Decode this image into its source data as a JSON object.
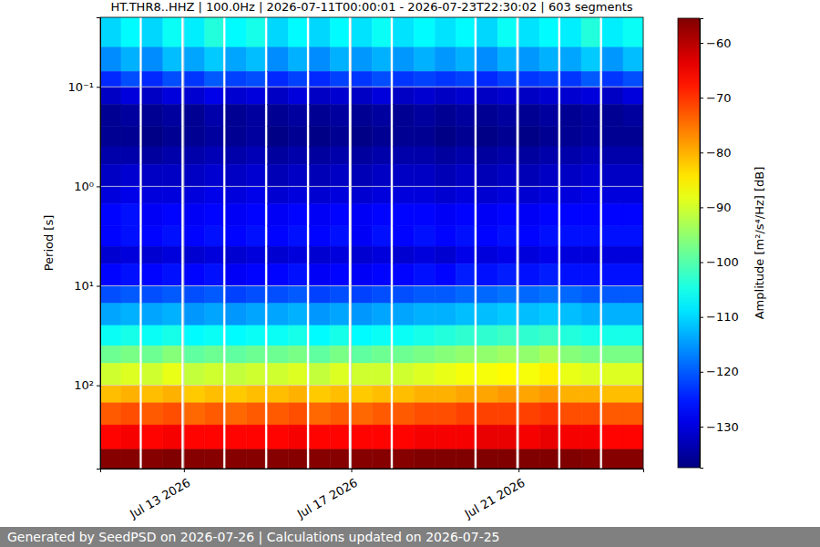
{
  "chart_data": {
    "type": "heatmap",
    "title": "HT.THR8..HHZ | 100.0Hz | 2026-07-11T00:00:01 - 2026-07-23T22:30:02 | 603 segments",
    "y_label": "Period [s]",
    "footer": "Generated by SeedPSD on 2026-07-26 | Calculations updated on 2026-07-25",
    "log": "y",
    "grid": true,
    "xlim": [
      "2026-07-11T00:00",
      "2026-07-23T23:30"
    ],
    "xticks": [
      {
        "value": "2026-07-13T00:00",
        "label": "Jul 13 2026"
      },
      {
        "value": "2026-07-17T00:00",
        "label": "Jul 17 2026"
      },
      {
        "value": "2026-07-21T00:00",
        "label": "Jul 21 2026"
      }
    ],
    "ylim": [
      0.02,
      687
    ],
    "yticks": [
      {
        "value": 0.1,
        "label": "10⁻¹"
      },
      {
        "value": 1,
        "label": "10⁰"
      },
      {
        "value": 10,
        "label": "10¹"
      },
      {
        "value": 100,
        "label": "10²"
      }
    ],
    "x": [
      "2026-07-11T00:00",
      "2026-07-11T12:00",
      "2026-07-11T22:30",
      "2026-07-12T00:00",
      "2026-07-12T12:00",
      "2026-07-12T22:30",
      "2026-07-13T00:00",
      "2026-07-13T12:00",
      "2026-07-13T22:30",
      "2026-07-14T00:00",
      "2026-07-14T12:00",
      "2026-07-14T22:30",
      "2026-07-15T00:00",
      "2026-07-15T12:00",
      "2026-07-15T22:30",
      "2026-07-16T00:00",
      "2026-07-16T12:00",
      "2026-07-16T22:30",
      "2026-07-17T00:00",
      "2026-07-17T12:00",
      "2026-07-17T22:30",
      "2026-07-18T00:00",
      "2026-07-18T12:00",
      "2026-07-19T00:00",
      "2026-07-19T12:00",
      "2026-07-19T22:30",
      "2026-07-20T00:00",
      "2026-07-20T12:00",
      "2026-07-20T22:30",
      "2026-07-21T00:00",
      "2026-07-21T12:00",
      "2026-07-21T22:30",
      "2026-07-22T00:00",
      "2026-07-22T12:00",
      "2026-07-22T22:30",
      "2026-07-23T00:00",
      "2026-07-23T12:00",
      "2026-07-23T23:30"
    ],
    "y": [
      0.02,
      0.04,
      0.07,
      0.1,
      0.15,
      0.25,
      0.4,
      0.6,
      1,
      1.5,
      2.5,
      4,
      6,
      10,
      15,
      25,
      40,
      60,
      100,
      150,
      250,
      440,
      687
    ],
    "cells": [
      [
        -110,
        -116,
        -124,
        -132,
        -136,
        -136,
        -134,
        -132,
        -130,
        -127,
        -127,
        -131,
        -127,
        -121,
        -114,
        -106,
        -98,
        -90,
        -81,
        -73,
        -66,
        -56
      ],
      [
        -107,
        -113,
        -121,
        -130,
        -135,
        -136,
        -134,
        -131,
        -129,
        -126,
        -126,
        -130,
        -126,
        -120,
        -113,
        -105,
        -97,
        -89,
        -80,
        -72,
        -65,
        -56
      ],
      null,
      [
        -110,
        -116,
        -124,
        -132,
        -136,
        -137,
        -135,
        -132,
        -130,
        -128,
        -127,
        -131,
        -127,
        -121,
        -114,
        -106,
        -98,
        -90,
        -81,
        -73,
        -66,
        -56
      ],
      [
        -106,
        -112,
        -121,
        -130,
        -135,
        -136,
        -134,
        -132,
        -130,
        -127,
        -126,
        -130,
        -126,
        -120,
        -113,
        -105,
        -96,
        -88,
        -80,
        -72,
        -65,
        -55
      ],
      null,
      [
        -108,
        -114,
        -123,
        -131,
        -136,
        -136,
        -134,
        -132,
        -130,
        -128,
        -127,
        -131,
        -127,
        -121,
        -115,
        -107,
        -99,
        -91,
        -82,
        -74,
        -66,
        -56
      ],
      [
        -104,
        -111,
        -120,
        -129,
        -134,
        -135,
        -133,
        -131,
        -129,
        -127,
        -126,
        -130,
        -126,
        -120,
        -114,
        -106,
        -98,
        -90,
        -81,
        -73,
        -66,
        -56
      ],
      null,
      [
        -107,
        -114,
        -122,
        -131,
        -136,
        -136,
        -134,
        -132,
        -130,
        -128,
        -127,
        -131,
        -128,
        -122,
        -115,
        -107,
        -99,
        -91,
        -82,
        -74,
        -66,
        -56
      ],
      [
        -105,
        -112,
        -121,
        -130,
        -135,
        -135,
        -133,
        -131,
        -129,
        -127,
        -126,
        -130,
        -127,
        -121,
        -114,
        -106,
        -98,
        -90,
        -81,
        -73,
        -66,
        -56
      ],
      null,
      [
        -110,
        -116,
        -124,
        -132,
        -136,
        -137,
        -135,
        -133,
        -131,
        -128,
        -127,
        -131,
        -127,
        -121,
        -114,
        -106,
        -98,
        -90,
        -81,
        -73,
        -66,
        -56
      ],
      [
        -107,
        -113,
        -122,
        -130,
        -135,
        -136,
        -134,
        -132,
        -130,
        -127,
        -126,
        -130,
        -126,
        -120,
        -113,
        -105,
        -97,
        -89,
        -80,
        -72,
        -65,
        -56
      ],
      null,
      [
        -110,
        -116,
        -124,
        -132,
        -136,
        -137,
        -135,
        -133,
        -131,
        -128,
        -127,
        -131,
        -128,
        -122,
        -115,
        -107,
        -99,
        -91,
        -82,
        -74,
        -66,
        -56
      ],
      [
        -107,
        -113,
        -122,
        -131,
        -135,
        -136,
        -134,
        -132,
        -130,
        -127,
        -126,
        -130,
        -127,
        -121,
        -114,
        -105,
        -97,
        -89,
        -81,
        -73,
        -66,
        -56
      ],
      null,
      [
        -109,
        -115,
        -123,
        -132,
        -136,
        -137,
        -135,
        -133,
        -131,
        -128,
        -128,
        -131,
        -128,
        -122,
        -115,
        -107,
        -99,
        -90,
        -82,
        -74,
        -66,
        -56
      ],
      [
        -106,
        -113,
        -121,
        -130,
        -135,
        -136,
        -134,
        -132,
        -130,
        -127,
        -126,
        -130,
        -127,
        -121,
        -114,
        -106,
        -98,
        -90,
        -81,
        -73,
        -66,
        -56
      ],
      null,
      [
        -109,
        -115,
        -123,
        -132,
        -136,
        -136,
        -134,
        -132,
        -130,
        -127,
        -127,
        -131,
        -127,
        -121,
        -114,
        -106,
        -98,
        -90,
        -81,
        -73,
        -66,
        -56
      ],
      [
        -107,
        -113,
        -122,
        -131,
        -135,
        -136,
        -134,
        -132,
        -130,
        -127,
        -126,
        -130,
        -126,
        -120,
        -113,
        -105,
        -97,
        -89,
        -80,
        -72,
        -65,
        -55
      ],
      [
        -109,
        -115,
        -123,
        -132,
        -136,
        -137,
        -135,
        -133,
        -131,
        -128,
        -127,
        -131,
        -127,
        -120,
        -113,
        -104,
        -96,
        -88,
        -80,
        -72,
        -65,
        -55
      ],
      [
        -107,
        -113,
        -122,
        -131,
        -135,
        -136,
        -134,
        -132,
        -130,
        -127,
        -126,
        -129,
        -125,
        -119,
        -112,
        -103,
        -95,
        -87,
        -79,
        -71,
        -65,
        -55
      ],
      null,
      [
        -110,
        -116,
        -124,
        -132,
        -136,
        -137,
        -135,
        -133,
        -131,
        -128,
        -127,
        -130,
        -126,
        -119,
        -112,
        -103,
        -95,
        -87,
        -79,
        -71,
        -64,
        -55
      ],
      [
        -106,
        -113,
        -122,
        -131,
        -135,
        -136,
        -134,
        -132,
        -130,
        -127,
        -126,
        -129,
        -125,
        -118,
        -111,
        -102,
        -94,
        -86,
        -78,
        -71,
        -64,
        -55
      ],
      null,
      [
        -109,
        -115,
        -123,
        -132,
        -136,
        -137,
        -135,
        -133,
        -131,
        -128,
        -127,
        -130,
        -126,
        -119,
        -112,
        -103,
        -95,
        -87,
        -79,
        -71,
        -65,
        -55
      ],
      [
        -107,
        -113,
        -122,
        -131,
        -135,
        -136,
        -134,
        -132,
        -130,
        -127,
        -126,
        -129,
        -125,
        -118,
        -111,
        -102,
        -93,
        -85,
        -78,
        -70,
        -64,
        -55
      ],
      null,
      [
        -108,
        -114,
        -123,
        -131,
        -136,
        -136,
        -134,
        -132,
        -130,
        -127,
        -126,
        -130,
        -126,
        -119,
        -112,
        -104,
        -96,
        -88,
        -80,
        -72,
        -65,
        -55
      ],
      [
        -104,
        -111,
        -120,
        -130,
        -135,
        -135,
        -133,
        -131,
        -129,
        -127,
        -126,
        -130,
        -126,
        -120,
        -113,
        -105,
        -97,
        -89,
        -80,
        -72,
        -65,
        -56
      ],
      null,
      [
        -108,
        -115,
        -123,
        -132,
        -136,
        -136,
        -134,
        -132,
        -130,
        -127,
        -126,
        -130,
        -126,
        -120,
        -113,
        -105,
        -97,
        -89,
        -81,
        -73,
        -66,
        -56
      ],
      [
        -106,
        -112,
        -121,
        -130,
        -135,
        -136,
        -134,
        -132,
        -130,
        -127,
        -126,
        -130,
        -126,
        -120,
        -113,
        -105,
        -97,
        -89,
        -81,
        -73,
        -66,
        -56
      ]
    ],
    "colorbar": {
      "label": "Amplitude [m²/s⁴/Hz] [dB]",
      "lim": [
        -137.5,
        -55.5
      ],
      "ticks": [
        -130,
        -120,
        -110,
        -100,
        -90,
        -80,
        -70,
        -60
      ]
    }
  }
}
